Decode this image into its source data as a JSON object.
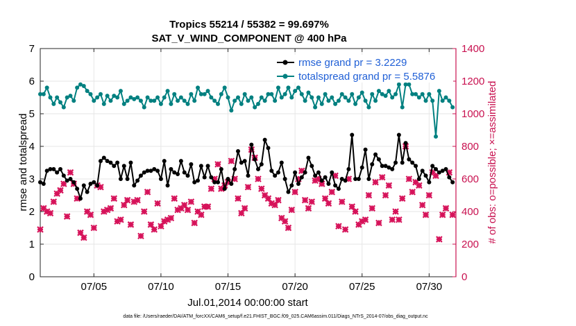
{
  "chart_data": {
    "type": "line",
    "title_line1": "Tropics 55214 / 55382 = 99.697%",
    "title_line2": "SAT_V_WIND_COMPONENT @ 400 hPa",
    "xlabel": "Jul.01,2014 00:00:00 start",
    "ylabel_left": "rmse and totalspread",
    "ylabel_right": "# of obs: o=possible; ×=assimilated",
    "footer": "data file: /Users/raeder/DAI/ATM_forcXX/CAM6_setup/f.e21.FHIST_BGC.f09_025.CAM6assim.011/Diags_NTrS_2014-07/obs_diag_output.nc",
    "xlim": [
      1,
      32
    ],
    "ylim_left": [
      0,
      7
    ],
    "ylim_right": [
      0,
      1400
    ],
    "x_ticks": [
      5,
      10,
      15,
      20,
      25,
      30
    ],
    "x_tick_labels": [
      "07/05",
      "07/10",
      "07/15",
      "07/20",
      "07/25",
      "07/30"
    ],
    "y_left_ticks": [
      0,
      1,
      2,
      3,
      4,
      5,
      6,
      7
    ],
    "y_left_tick_labels": [
      "0",
      "1",
      "2",
      "3",
      "4",
      "5",
      "6",
      "7"
    ],
    "y_right_ticks": [
      0,
      200,
      400,
      600,
      800,
      1000,
      1200,
      1400
    ],
    "y_right_tick_labels": [
      "0",
      "200",
      "400",
      "600",
      "800",
      "1000",
      "1200",
      "1400"
    ],
    "grid": true,
    "legend_position": "top-right",
    "colors": {
      "rmse": "#000000",
      "totalspread": "#008080",
      "obs": "#d6135a",
      "axis_right": "#c8104f",
      "legend_text": "#1f5fd6",
      "grid": "#e6e6e6"
    },
    "x": [
      1.0,
      1.25,
      1.5,
      1.75,
      2.0,
      2.25,
      2.5,
      2.75,
      3.0,
      3.25,
      3.5,
      3.75,
      4.0,
      4.25,
      4.5,
      4.75,
      5.0,
      5.25,
      5.5,
      5.75,
      6.0,
      6.25,
      6.5,
      6.75,
      7.0,
      7.25,
      7.5,
      7.75,
      8.0,
      8.25,
      8.5,
      8.75,
      9.0,
      9.25,
      9.5,
      9.75,
      10.0,
      10.25,
      10.5,
      10.75,
      11.0,
      11.25,
      11.5,
      11.75,
      12.0,
      12.25,
      12.5,
      12.75,
      13.0,
      13.25,
      13.5,
      13.75,
      14.0,
      14.25,
      14.5,
      14.75,
      15.0,
      15.25,
      15.5,
      15.75,
      16.0,
      16.25,
      16.5,
      16.75,
      17.0,
      17.25,
      17.5,
      17.75,
      18.0,
      18.25,
      18.5,
      18.75,
      19.0,
      19.25,
      19.5,
      19.75,
      20.0,
      20.25,
      20.5,
      20.75,
      21.0,
      21.25,
      21.5,
      21.75,
      22.0,
      22.25,
      22.5,
      22.75,
      23.0,
      23.25,
      23.5,
      23.75,
      24.0,
      24.25,
      24.5,
      24.75,
      25.0,
      25.25,
      25.5,
      25.75,
      26.0,
      26.25,
      26.5,
      26.75,
      27.0,
      27.25,
      27.5,
      27.75,
      28.0,
      28.25,
      28.5,
      28.75,
      29.0,
      29.25,
      29.5,
      29.75,
      30.0,
      30.25,
      30.5,
      30.75,
      31.0,
      31.25,
      31.5,
      31.75
    ],
    "series": [
      {
        "name": "rmse grand pr = 3.2229",
        "axis": "left",
        "marker": "circle",
        "values": [
          2.9,
          2.85,
          3.25,
          3.3,
          3.3,
          3.2,
          3.3,
          3.1,
          2.95,
          3.0,
          2.9,
          2.7,
          2.4,
          2.8,
          2.6,
          2.85,
          2.9,
          2.8,
          3.55,
          3.65,
          3.55,
          3.5,
          3.4,
          3.5,
          3.0,
          3.4,
          3.0,
          3.5,
          2.8,
          2.95,
          3.1,
          3.2,
          3.25,
          3.25,
          3.3,
          3.25,
          3.0,
          3.55,
          2.8,
          3.3,
          3.2,
          3.15,
          3.55,
          3.2,
          3.1,
          3.45,
          2.9,
          2.95,
          3.4,
          3.05,
          3.4,
          3.05,
          2.9,
          2.9,
          3.3,
          2.7,
          3.0,
          2.85,
          3.3,
          3.85,
          3.5,
          3.55,
          3.1,
          4.05,
          3.6,
          3.3,
          3.45,
          4.2,
          3.95,
          3.25,
          3.1,
          3.2,
          3.5,
          3.0,
          2.6,
          2.8,
          3.2,
          2.85,
          3.05,
          3.2,
          3.65,
          3.4,
          3.1,
          3.2,
          2.95,
          3.05,
          2.85,
          3.2,
          2.8,
          2.7,
          3.0,
          2.95,
          3.3,
          4.35,
          3.0,
          3.0,
          3.35,
          3.9,
          3.0,
          3.45,
          3.75,
          3.6,
          3.4,
          3.4,
          3.35,
          3.3,
          3.5,
          4.35,
          3.5,
          4.1,
          3.6,
          3.5,
          3.4,
          3.0,
          3.25,
          3.1,
          2.9,
          3.4,
          3.3,
          3.2,
          3.25,
          3.3,
          3.05,
          2.9
        ]
      },
      {
        "name": "totalspread grand pr = 5.5876",
        "axis": "left",
        "marker": "circle",
        "values": [
          5.6,
          5.6,
          5.8,
          5.5,
          5.3,
          5.5,
          5.35,
          5.2,
          5.5,
          5.55,
          5.4,
          5.8,
          5.9,
          5.85,
          5.7,
          5.6,
          5.4,
          5.5,
          5.6,
          5.3,
          5.55,
          5.4,
          5.55,
          5.5,
          5.7,
          5.3,
          5.4,
          5.5,
          5.45,
          5.5,
          5.4,
          5.2,
          5.5,
          5.4,
          5.4,
          5.5,
          5.3,
          5.5,
          5.7,
          5.3,
          5.6,
          5.4,
          5.5,
          5.4,
          5.3,
          5.6,
          5.4,
          5.8,
          5.6,
          5.6,
          5.7,
          5.5,
          5.4,
          5.3,
          5.6,
          5.8,
          5.5,
          5.1,
          5.4,
          5.5,
          5.3,
          5.6,
          5.4,
          5.5,
          5.2,
          5.3,
          5.5,
          5.4,
          5.6,
          5.6,
          5.4,
          5.8,
          5.5,
          5.6,
          5.8,
          5.5,
          5.7,
          5.8,
          5.6,
          5.4,
          5.65,
          5.5,
          5.2,
          5.5,
          5.3,
          5.6,
          5.4,
          5.5,
          5.3,
          5.4,
          5.6,
          5.5,
          5.4,
          5.6,
          5.3,
          5.5,
          5.65,
          5.4,
          5.2,
          5.6,
          5.4,
          5.7,
          5.6,
          5.55,
          5.7,
          5.5,
          5.6,
          5.9,
          5.2,
          5.9,
          5.9,
          5.6,
          5.6,
          5.5,
          5.6,
          5.4,
          5.6,
          5.4,
          4.3,
          5.7,
          5.4,
          5.5,
          5.4,
          5.2
        ]
      },
      {
        "name": "# of obs assimilated",
        "axis": "right",
        "marker": "x",
        "values": [
          290,
          420,
          400,
          390,
          460,
          510,
          530,
          570,
          370,
          640,
          570,
          480,
          270,
          240,
          400,
          380,
          300,
          560,
          550,
          400,
          410,
          420,
          480,
          340,
          350,
          440,
          470,
          320,
          460,
          470,
          250,
          400,
          520,
          320,
          290,
          450,
          310,
          340,
          350,
          360,
          480,
          410,
          420,
          440,
          410,
          460,
          330,
          400,
          380,
          430,
          430,
          540,
          600,
          690,
          540,
          560,
          580,
          710,
          600,
          480,
          390,
          420,
          550,
          780,
          730,
          600,
          540,
          500,
          480,
          450,
          440,
          470,
          360,
          340,
          300,
          410,
          520,
          600,
          650,
          470,
          420,
          460,
          590,
          600,
          570,
          480,
          450,
          520,
          620,
          310,
          460,
          290,
          600,
          430,
          400,
          320,
          340,
          350,
          500,
          420,
          580,
          330,
          610,
          500,
          560,
          350,
          400,
          350,
          480,
          800,
          600,
          520,
          580,
          560,
          440,
          380,
          500,
          640,
          620,
          230,
          380,
          420,
          640,
          380
        ]
      }
    ]
  }
}
